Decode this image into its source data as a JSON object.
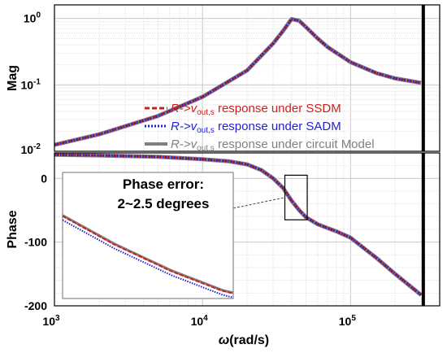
{
  "chart_data": [
    {
      "type": "line",
      "panel": "magnitude",
      "ylabel": "Mag",
      "yscale": "log",
      "ylim": [
        0.01,
        1.6
      ],
      "xscale": "log",
      "xlim": [
        1000,
        400000
      ],
      "yticks": [
        {
          "base": "10",
          "exp": "0"
        },
        {
          "base": "10",
          "exp": "-1"
        },
        {
          "base": "10",
          "exp": "-2"
        }
      ],
      "grid": true,
      "x": [
        1000,
        2000,
        5000,
        10000,
        20000,
        30000,
        35000,
        40000,
        45000,
        50000,
        60000,
        70000,
        100000,
        150000,
        200000,
        300000
      ],
      "series": [
        {
          "name": "SSDM",
          "color": "#cc2020",
          "style": "dashed",
          "values": [
            0.0125,
            0.018,
            0.034,
            0.066,
            0.165,
            0.42,
            0.65,
            0.98,
            0.92,
            0.74,
            0.5,
            0.37,
            0.22,
            0.15,
            0.125,
            0.107
          ]
        },
        {
          "name": "SADM",
          "color": "#1f1fd0",
          "style": "dotted",
          "values": [
            0.0125,
            0.018,
            0.034,
            0.066,
            0.165,
            0.42,
            0.65,
            0.98,
            0.92,
            0.74,
            0.5,
            0.37,
            0.22,
            0.15,
            0.125,
            0.107
          ]
        },
        {
          "name": "circuit Model",
          "color": "#808080",
          "style": "solid",
          "values": [
            0.0125,
            0.018,
            0.034,
            0.066,
            0.165,
            0.42,
            0.65,
            0.98,
            0.92,
            0.74,
            0.5,
            0.37,
            0.22,
            0.15,
            0.125,
            0.107
          ]
        }
      ],
      "vline_x": 310000,
      "legend": {
        "placement": "bottom-right",
        "entries": [
          {
            "prefix": "R->v",
            "sub": "out,s",
            "suffix": " response under SSDM",
            "color": "#cc2020",
            "style": "dashed"
          },
          {
            "prefix": "R->v",
            "sub": "out,s",
            "suffix": " response under SADM",
            "color": "#1f1fd0",
            "style": "dotted"
          },
          {
            "prefix": "R->v",
            "sub": "out,s",
            "suffix": " response under circuit Model",
            "color": "#808080",
            "style": "solid"
          }
        ]
      }
    },
    {
      "type": "line",
      "panel": "phase",
      "ylabel": "Phase",
      "xlabel_sym": "ω",
      "xlabel_rest": "(rad/s)",
      "xscale": "log",
      "xlim": [
        1000,
        400000
      ],
      "ylim": [
        -200,
        40
      ],
      "yticks": [
        "0",
        "-100",
        "-200"
      ],
      "xticks": [
        {
          "base": "10",
          "exp": "3"
        },
        {
          "base": "10",
          "exp": "4"
        },
        {
          "base": "10",
          "exp": "5"
        }
      ],
      "grid": true,
      "x": [
        1000,
        2000,
        5000,
        10000,
        15000,
        20000,
        25000,
        30000,
        35000,
        40000,
        45000,
        50000,
        60000,
        70000,
        80000,
        100000,
        150000,
        200000,
        300000
      ],
      "series": [
        {
          "name": "SSDM",
          "color": "#cc2020",
          "style": "dashed",
          "values": [
            37,
            36,
            34,
            30,
            27,
            22,
            13,
            0,
            -15,
            -35,
            -50,
            -61,
            -72,
            -78,
            -83,
            -93,
            -125,
            -150,
            -183
          ]
        },
        {
          "name": "SADM",
          "color": "#1f1fd0",
          "style": "dotted",
          "values": [
            37,
            36,
            34,
            30,
            27,
            22,
            13,
            0,
            -15,
            -35,
            -50,
            -61,
            -72,
            -78,
            -83,
            -93,
            -125,
            -150,
            -183
          ]
        },
        {
          "name": "circuit Model",
          "color": "#808080",
          "style": "solid",
          "values": [
            37,
            36,
            34,
            30,
            27,
            22,
            13,
            0,
            -15,
            -35,
            -50,
            -61,
            -72,
            -78,
            -83,
            -93,
            -125,
            -150,
            -183
          ]
        }
      ],
      "vline_x": 310000,
      "zoom_box": {
        "x": [
          36000,
          51000
        ],
        "y": [
          -65,
          5
        ]
      },
      "inset_text": [
        "Phase error:",
        "2~2.5 degrees"
      ]
    }
  ]
}
